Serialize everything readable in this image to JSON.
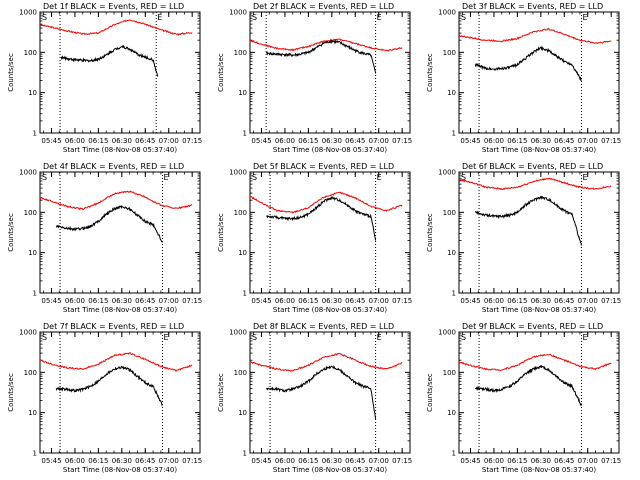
{
  "figure": {
    "background": "#ffffff",
    "axis_color": "#000000",
    "events_color": "#000000",
    "lld_color": "#ff0000"
  },
  "chart_data": [
    {
      "type": "line",
      "title": "Det 1f BLACK = Events, RED = LLD",
      "xlabel": "Start Time (08-Nov-08 05:37:40)",
      "ylabel": "Counts/sec",
      "y_scale": "log",
      "ylim": [
        1,
        1000
      ],
      "y_ticks": [
        "1",
        "10",
        "100",
        "1000"
      ],
      "x_ticks": [
        "05:45",
        "06:00",
        "06:15",
        "06:30",
        "06:45",
        "07:00",
        "07:15"
      ],
      "xlim": [
        "05:37:40",
        "07:20:00"
      ],
      "markers": [
        {
          "label": "S",
          "time": "05:37:40"
        },
        {
          "label": "E",
          "time": "06:52:00"
        }
      ],
      "dotted_lines": [
        "05:50:30",
        "06:52:00"
      ],
      "grid": false,
      "series": [
        {
          "name": "LLD",
          "color": "#ff0000",
          "x": [
            "05:37:40",
            "05:45",
            "05:55",
            "06:05",
            "06:15",
            "06:25",
            "06:35",
            "06:45",
            "06:55",
            "07:05",
            "07:15"
          ],
          "y": [
            480,
            420,
            340,
            285,
            300,
            480,
            650,
            500,
            360,
            280,
            310
          ]
        },
        {
          "name": "Events",
          "color": "#000000",
          "x": [
            "05:51",
            "05:55",
            "06:00",
            "06:05",
            "06:10",
            "06:15",
            "06:20",
            "06:25",
            "06:30",
            "06:35",
            "06:40",
            "06:45",
            "06:50",
            "06:53"
          ],
          "y": [
            75,
            70,
            66,
            63,
            62,
            68,
            85,
            115,
            140,
            120,
            90,
            75,
            65,
            25
          ]
        }
      ]
    },
    {
      "type": "line",
      "title": "Det 2f BLACK = Events, RED = LLD",
      "xlabel": "Start Time (08-Nov-08 05:37:40)",
      "ylabel": "Counts/sec",
      "y_scale": "log",
      "ylim": [
        1,
        1000
      ],
      "y_ticks": [
        "1",
        "10",
        "100",
        "1000"
      ],
      "x_ticks": [
        "05:45",
        "06:00",
        "06:15",
        "06:30",
        "06:45",
        "07:00",
        "07:15"
      ],
      "xlim": [
        "05:37:40",
        "07:20:00"
      ],
      "markers": [
        {
          "label": "S",
          "time": "05:37:40"
        },
        {
          "label": "E",
          "time": "06:58:00"
        }
      ],
      "dotted_lines": [
        "05:48:00",
        "06:58:00"
      ],
      "grid": false,
      "series": [
        {
          "name": "LLD",
          "color": "#ff0000",
          "x": [
            "05:37:40",
            "05:45",
            "05:55",
            "06:05",
            "06:15",
            "06:25",
            "06:35",
            "06:45",
            "06:55",
            "07:05",
            "07:15"
          ],
          "y": [
            200,
            160,
            125,
            115,
            140,
            190,
            210,
            165,
            130,
            110,
            130
          ]
        },
        {
          "name": "Events",
          "color": "#000000",
          "x": [
            "05:48",
            "05:55",
            "06:00",
            "06:05",
            "06:10",
            "06:15",
            "06:20",
            "06:25",
            "06:30",
            "06:35",
            "06:40",
            "06:45",
            "06:50",
            "06:55",
            "06:58"
          ],
          "y": [
            95,
            90,
            88,
            85,
            90,
            100,
            130,
            170,
            190,
            175,
            140,
            110,
            95,
            85,
            30
          ]
        }
      ]
    },
    {
      "type": "line",
      "title": "Det 3f BLACK = Events, RED = LLD",
      "xlabel": "Start Time (08-Nov-08 05:37:40)",
      "ylabel": "Counts/sec",
      "y_scale": "log",
      "ylim": [
        1,
        1000
      ],
      "y_ticks": [
        "1",
        "10",
        "100",
        "1000"
      ],
      "x_ticks": [
        "05:45",
        "06:00",
        "06:15",
        "06:30",
        "06:45",
        "07:00",
        "07:15"
      ],
      "xlim": [
        "05:37:40",
        "07:20:00"
      ],
      "markers": [
        {
          "label": "S",
          "time": "05:37:40"
        },
        {
          "label": "E",
          "time": "06:56:00"
        }
      ],
      "dotted_lines": [
        "05:50:30",
        "06:56:00"
      ],
      "grid": false,
      "series": [
        {
          "name": "LLD",
          "color": "#ff0000",
          "x": [
            "05:37:40",
            "05:45",
            "05:55",
            "06:05",
            "06:15",
            "06:25",
            "06:35",
            "06:45",
            "06:55",
            "07:05",
            "07:15"
          ],
          "y": [
            260,
            230,
            200,
            190,
            220,
            320,
            380,
            280,
            200,
            170,
            190
          ]
        },
        {
          "name": "Events",
          "color": "#000000",
          "x": [
            "05:48",
            "05:55",
            "06:00",
            "06:05",
            "06:10",
            "06:15",
            "06:20",
            "06:25",
            "06:30",
            "06:35",
            "06:40",
            "06:45",
            "06:50",
            "06:56"
          ],
          "y": [
            50,
            40,
            38,
            40,
            42,
            50,
            70,
            100,
            130,
            110,
            80,
            60,
            50,
            20
          ]
        }
      ]
    },
    {
      "type": "line",
      "title": "Det 4f BLACK = Events, RED = LLD",
      "xlabel": "Start Time (08-Nov-08 05:37:40)",
      "ylabel": "Counts/sec",
      "y_scale": "log",
      "ylim": [
        1,
        1000
      ],
      "y_ticks": [
        "1",
        "10",
        "100",
        "1000"
      ],
      "x_ticks": [
        "05:45",
        "06:00",
        "06:15",
        "06:30",
        "06:45",
        "07:00",
        "07:15"
      ],
      "xlim": [
        "05:37:40",
        "07:20:00"
      ],
      "markers": [
        {
          "label": "S",
          "time": "05:37:40"
        },
        {
          "label": "E",
          "time": "06:56:00"
        }
      ],
      "dotted_lines": [
        "05:50:30",
        "06:56:00"
      ],
      "grid": false,
      "series": [
        {
          "name": "LLD",
          "color": "#ff0000",
          "x": [
            "05:37:40",
            "05:45",
            "05:55",
            "06:05",
            "06:15",
            "06:25",
            "06:35",
            "06:45",
            "06:55",
            "07:05",
            "07:15"
          ],
          "y": [
            230,
            190,
            140,
            120,
            170,
            290,
            330,
            240,
            150,
            125,
            150
          ]
        },
        {
          "name": "Events",
          "color": "#000000",
          "x": [
            "05:48",
            "05:55",
            "06:00",
            "06:05",
            "06:10",
            "06:15",
            "06:20",
            "06:25",
            "06:30",
            "06:35",
            "06:40",
            "06:45",
            "06:50",
            "06:56"
          ],
          "y": [
            45,
            40,
            38,
            40,
            45,
            60,
            90,
            120,
            140,
            120,
            85,
            60,
            50,
            18
          ]
        }
      ]
    },
    {
      "type": "line",
      "title": "Det 5f BLACK = Events, RED = LLD",
      "xlabel": "Start Time (08-Nov-08 05:37:40)",
      "ylabel": "Counts/sec",
      "y_scale": "log",
      "ylim": [
        1,
        1000
      ],
      "y_ticks": [
        "1",
        "10",
        "100",
        "1000"
      ],
      "x_ticks": [
        "05:45",
        "06:00",
        "06:15",
        "06:30",
        "06:45",
        "07:00",
        "07:15"
      ],
      "xlim": [
        "05:37:40",
        "07:20:00"
      ],
      "markers": [
        {
          "label": "S",
          "time": "05:37:40"
        },
        {
          "label": "E",
          "time": "06:58:00"
        }
      ],
      "dotted_lines": [
        "05:50:30",
        "06:58:00"
      ],
      "grid": false,
      "series": [
        {
          "name": "LLD",
          "color": "#ff0000",
          "x": [
            "05:37:40",
            "05:45",
            "05:55",
            "06:05",
            "06:15",
            "06:25",
            "06:35",
            "06:45",
            "06:55",
            "07:05",
            "07:15"
          ],
          "y": [
            250,
            170,
            110,
            100,
            130,
            240,
            310,
            230,
            140,
            110,
            150
          ]
        },
        {
          "name": "Events",
          "color": "#000000",
          "x": [
            "05:48",
            "05:55",
            "06:00",
            "06:05",
            "06:10",
            "06:15",
            "06:20",
            "06:25",
            "06:30",
            "06:35",
            "06:40",
            "06:45",
            "06:50",
            "06:55",
            "06:58"
          ],
          "y": [
            80,
            75,
            70,
            70,
            75,
            90,
            130,
            190,
            230,
            200,
            150,
            110,
            90,
            80,
            20
          ]
        }
      ]
    },
    {
      "type": "line",
      "title": "Det 6f BLACK = Events, RED = LLD",
      "xlabel": "Start Time (08-Nov-08 05:37:40)",
      "ylabel": "Counts/sec",
      "y_scale": "log",
      "ylim": [
        1,
        1000
      ],
      "y_ticks": [
        "1",
        "10",
        "100",
        "1000"
      ],
      "x_ticks": [
        "05:45",
        "06:00",
        "06:15",
        "06:30",
        "06:45",
        "07:00",
        "07:15"
      ],
      "xlim": [
        "05:37:40",
        "07:20:00"
      ],
      "markers": [
        {
          "label": "S",
          "time": "05:37:40"
        },
        {
          "label": "E",
          "time": "06:56:00"
        }
      ],
      "dotted_lines": [
        "05:50:30",
        "06:56:00"
      ],
      "grid": false,
      "series": [
        {
          "name": "LLD",
          "color": "#ff0000",
          "x": [
            "05:37:40",
            "05:45",
            "05:55",
            "06:05",
            "06:15",
            "06:25",
            "06:35",
            "06:45",
            "06:55",
            "07:05",
            "07:15"
          ],
          "y": [
            650,
            560,
            420,
            380,
            420,
            580,
            700,
            540,
            420,
            380,
            450
          ]
        },
        {
          "name": "Events",
          "color": "#000000",
          "x": [
            "05:48",
            "05:55",
            "06:00",
            "06:05",
            "06:10",
            "06:15",
            "06:20",
            "06:25",
            "06:30",
            "06:35",
            "06:40",
            "06:45",
            "06:50",
            "06:56"
          ],
          "y": [
            100,
            85,
            80,
            80,
            85,
            100,
            150,
            200,
            240,
            210,
            150,
            110,
            90,
            15
          ]
        }
      ]
    },
    {
      "type": "line",
      "title": "Det 7f BLACK = Events, RED = LLD",
      "xlabel": "Start Time (08-Nov-08 05:37:40)",
      "ylabel": "Counts/sec",
      "y_scale": "log",
      "ylim": [
        1,
        1000
      ],
      "y_ticks": [
        "1",
        "10",
        "100",
        "1000"
      ],
      "x_ticks": [
        "05:45",
        "06:00",
        "06:15",
        "06:30",
        "06:45",
        "07:00",
        "07:15"
      ],
      "xlim": [
        "05:37:40",
        "07:20:00"
      ],
      "markers": [
        {
          "label": "S",
          "time": "05:37:40"
        },
        {
          "label": "E",
          "time": "06:56:00"
        }
      ],
      "dotted_lines": [
        "05:50:30",
        "06:56:00"
      ],
      "grid": false,
      "series": [
        {
          "name": "LLD",
          "color": "#ff0000",
          "x": [
            "05:37:40",
            "05:45",
            "05:55",
            "06:05",
            "06:15",
            "06:25",
            "06:35",
            "06:45",
            "06:55",
            "07:05",
            "07:15"
          ],
          "y": [
            200,
            160,
            130,
            120,
            160,
            260,
            300,
            210,
            140,
            110,
            150
          ]
        },
        {
          "name": "Events",
          "color": "#000000",
          "x": [
            "05:48",
            "05:55",
            "06:00",
            "06:05",
            "06:10",
            "06:15",
            "06:20",
            "06:25",
            "06:30",
            "06:35",
            "06:40",
            "06:45",
            "06:50",
            "06:56"
          ],
          "y": [
            40,
            38,
            35,
            38,
            45,
            60,
            90,
            120,
            135,
            115,
            80,
            55,
            45,
            15
          ]
        }
      ]
    },
    {
      "type": "line",
      "title": "Det 8f BLACK = Events, RED = LLD",
      "xlabel": "Start Time (08-Nov-08 05:37:40)",
      "ylabel": "Counts/sec",
      "y_scale": "log",
      "ylim": [
        1,
        1000
      ],
      "y_ticks": [
        "1",
        "10",
        "100",
        "1000"
      ],
      "x_ticks": [
        "05:45",
        "06:00",
        "06:15",
        "06:30",
        "06:45",
        "07:00",
        "07:15"
      ],
      "xlim": [
        "05:37:40",
        "07:20:00"
      ],
      "markers": [
        {
          "label": "S",
          "time": "05:37:40"
        },
        {
          "label": "E",
          "time": "06:58:00"
        }
      ],
      "dotted_lines": [
        "05:50:30",
        "06:58:00"
      ],
      "grid": false,
      "series": [
        {
          "name": "LLD",
          "color": "#ff0000",
          "x": [
            "05:37:40",
            "05:45",
            "05:55",
            "06:05",
            "06:15",
            "06:25",
            "06:35",
            "06:45",
            "06:55",
            "07:05",
            "07:15"
          ],
          "y": [
            180,
            150,
            120,
            110,
            150,
            240,
            290,
            200,
            140,
            120,
            170
          ]
        },
        {
          "name": "Events",
          "color": "#000000",
          "x": [
            "05:48",
            "05:55",
            "06:00",
            "06:05",
            "06:10",
            "06:15",
            "06:20",
            "06:25",
            "06:30",
            "06:35",
            "06:40",
            "06:45",
            "06:50",
            "06:55",
            "06:58"
          ],
          "y": [
            40,
            38,
            35,
            38,
            45,
            60,
            90,
            120,
            140,
            115,
            80,
            55,
            45,
            40,
            7
          ]
        }
      ]
    },
    {
      "type": "line",
      "title": "Det 9f BLACK = Events, RED = LLD",
      "xlabel": "Start Time (08-Nov-08 05:37:40)",
      "ylabel": "Counts/sec",
      "y_scale": "log",
      "ylim": [
        1,
        1000
      ],
      "y_ticks": [
        "1",
        "10",
        "100",
        "1000"
      ],
      "x_ticks": [
        "05:45",
        "06:00",
        "06:15",
        "06:30",
        "06:45",
        "07:00",
        "07:15"
      ],
      "xlim": [
        "05:37:40",
        "07:20:00"
      ],
      "markers": [
        {
          "label": "S",
          "time": "05:37:40"
        },
        {
          "label": "E",
          "time": "06:56:00"
        }
      ],
      "dotted_lines": [
        "05:50:30",
        "06:56:00"
      ],
      "grid": false,
      "series": [
        {
          "name": "LLD",
          "color": "#ff0000",
          "x": [
            "05:37:40",
            "05:45",
            "05:55",
            "06:05",
            "06:15",
            "06:25",
            "06:35",
            "06:45",
            "06:55",
            "07:05",
            "07:15"
          ],
          "y": [
            180,
            150,
            120,
            115,
            150,
            240,
            280,
            200,
            140,
            120,
            170
          ]
        },
        {
          "name": "Events",
          "color": "#000000",
          "x": [
            "05:48",
            "05:55",
            "06:00",
            "06:05",
            "06:10",
            "06:15",
            "06:20",
            "06:25",
            "06:30",
            "06:35",
            "06:40",
            "06:45",
            "06:50",
            "06:56"
          ],
          "y": [
            40,
            38,
            35,
            38,
            45,
            60,
            90,
            120,
            140,
            115,
            80,
            55,
            45,
            15
          ]
        }
      ]
    }
  ]
}
